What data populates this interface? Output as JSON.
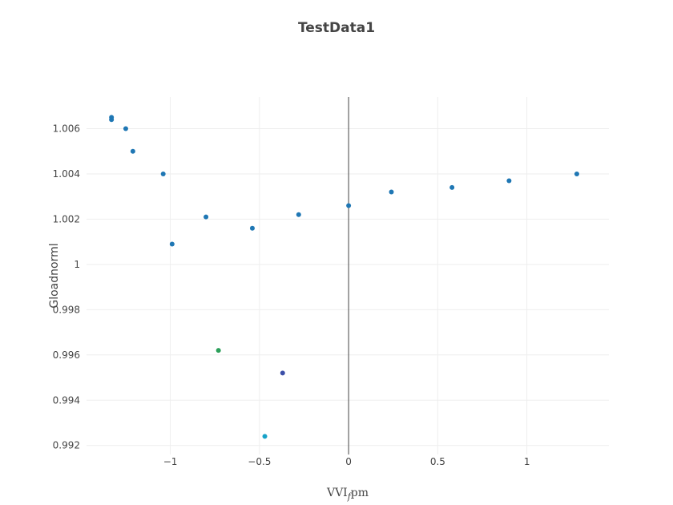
{
  "chart_data": {
    "type": "scatter",
    "title": "TestData1",
    "xlabel": "VVI_fpm",
    "xlabel_main": "VVI",
    "xlabel_sub": "f",
    "xlabel_suffix": "pm",
    "ylabel": "Gloadnorml",
    "xlim": [
      -1.47,
      1.46
    ],
    "ylim": [
      0.9916,
      1.0074
    ],
    "x_ticks": [
      -1,
      -0.5,
      0,
      0.5,
      1
    ],
    "x_tick_labels": [
      "−1",
      "−0.5",
      "0",
      "0.5",
      "1"
    ],
    "y_ticks": [
      0.992,
      0.994,
      0.996,
      0.998,
      1.0,
      1.002,
      1.004,
      1.006
    ],
    "y_tick_labels": [
      "0.992",
      "0.994",
      "0.996",
      "0.998",
      "1",
      "1.002",
      "1.004",
      "1.006"
    ],
    "grid": true,
    "series": [
      {
        "color": "#1f77b4",
        "points": [
          {
            "x": -1.33,
            "y": 1.0064
          },
          {
            "x": -1.33,
            "y": 1.0065
          },
          {
            "x": -1.25,
            "y": 1.006
          },
          {
            "x": -1.21,
            "y": 1.005
          },
          {
            "x": -1.04,
            "y": 1.004
          },
          {
            "x": -0.99,
            "y": 1.0009
          },
          {
            "x": -0.8,
            "y": 1.0021
          },
          {
            "x": -0.73,
            "y": 0.9962,
            "color": "#2ca05a"
          },
          {
            "x": -0.54,
            "y": 1.0016
          },
          {
            "x": -0.47,
            "y": 0.9924,
            "color": "#17a2c8"
          },
          {
            "x": -0.37,
            "y": 0.9952,
            "color": "#3b4fa8"
          },
          {
            "x": -0.28,
            "y": 1.0022
          },
          {
            "x": 0.0,
            "y": 1.0026
          },
          {
            "x": 0.24,
            "y": 1.0032
          },
          {
            "x": 0.58,
            "y": 1.0034
          },
          {
            "x": 0.9,
            "y": 1.0037
          },
          {
            "x": 1.28,
            "y": 1.004
          }
        ]
      }
    ]
  }
}
